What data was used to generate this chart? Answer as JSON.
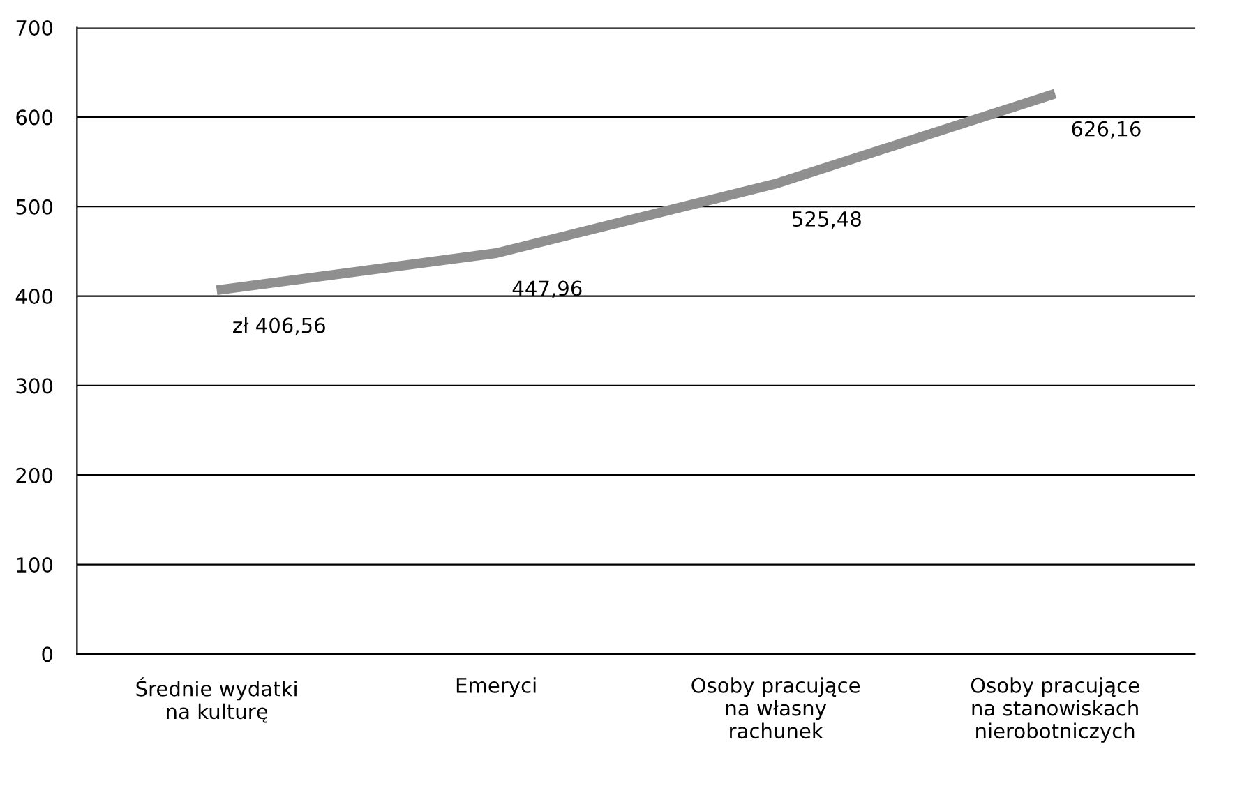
{
  "chart_data": {
    "type": "line",
    "categories": [
      "Średnie wydatki\nna kulturę",
      "Emeryci",
      "Osoby pracujące\nna własny\nrachunek",
      "Osoby pracujące\nna stanowiskach\nnierobotniczych"
    ],
    "series": [
      {
        "color": "#8f8f8f",
        "values": [
          406.56,
          447.96,
          525.48,
          626.16
        ],
        "value_labels": [
          "zł 406,56",
          "447,96",
          "525,48",
          "626,16"
        ]
      }
    ],
    "ylim": [
      0,
      700
    ],
    "yticks": [
      0,
      100,
      200,
      300,
      400,
      500,
      600,
      700
    ],
    "grid": "y",
    "legend": false,
    "marker": "none",
    "line_style": "solid"
  }
}
